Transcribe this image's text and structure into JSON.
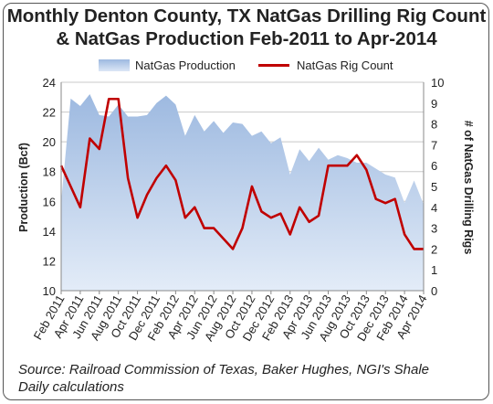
{
  "title_line1": "Monthly Denton County, TX NatGas Drilling Rig Count",
  "title_line2": "& NatGas Production Feb-2011 to Apr-2014",
  "legend": {
    "production": "NatGas Production",
    "rigs": "NatGas Rig Count"
  },
  "source_line1": "Source: Railroad Commission of Texas, Baker Hughes, NGI's Shale",
  "source_line2": "Daily calculations",
  "colors": {
    "production_area_top": "#9db9e0",
    "production_area_bottom": "#e3ecf8",
    "rig_line": "#c00000",
    "grid": "#c8c8c8"
  },
  "chart_data": {
    "type": "area+line",
    "x_tick_labels": [
      "Feb 2011",
      "Apr 2011",
      "Jun 2011",
      "Aug 2011",
      "Oct 2011",
      "Dec 2011",
      "Feb 2012",
      "Apr 2012",
      "Jun 2012",
      "Aug 2012",
      "Oct 2012",
      "Dec 2012",
      "Feb 2013",
      "Apr 2013",
      "Jun 2013",
      "Aug 2013",
      "Oct 2013",
      "Dec 2013",
      "Feb 2014",
      "Apr 2014"
    ],
    "months": [
      "Feb 2011",
      "Mar 2011",
      "Apr 2011",
      "May 2011",
      "Jun 2011",
      "Jul 2011",
      "Aug 2011",
      "Sep 2011",
      "Oct 2011",
      "Nov 2011",
      "Dec 2011",
      "Jan 2012",
      "Feb 2012",
      "Mar 2012",
      "Apr 2012",
      "May 2012",
      "Jun 2012",
      "Jul 2012",
      "Aug 2012",
      "Sep 2012",
      "Oct 2012",
      "Nov 2012",
      "Dec 2012",
      "Jan 2013",
      "Feb 2013",
      "Mar 2013",
      "Apr 2013",
      "May 2013",
      "Jun 2013",
      "Jul 2013",
      "Aug 2013",
      "Sep 2013",
      "Oct 2013",
      "Nov 2013",
      "Dec 2013",
      "Jan 2014",
      "Feb 2014",
      "Mar 2014",
      "Apr 2014"
    ],
    "series": [
      {
        "name": "NatGas Production",
        "axis": "left",
        "values": [
          16.0,
          22.9,
          22.4,
          23.2,
          21.8,
          21.7,
          22.5,
          21.7,
          21.7,
          21.8,
          22.6,
          23.1,
          22.5,
          20.4,
          21.8,
          20.7,
          21.4,
          20.6,
          21.3,
          21.2,
          20.4,
          20.7,
          19.9,
          20.3,
          17.8,
          19.5,
          18.7,
          19.6,
          18.8,
          19.1,
          18.9,
          18.6,
          18.6,
          18.2,
          17.8,
          17.6,
          15.9,
          17.4,
          15.8
        ]
      },
      {
        "name": "NatGas Rig Count",
        "axis": "right",
        "values": [
          6.0,
          5.0,
          4.0,
          7.3,
          6.8,
          9.2,
          9.2,
          5.4,
          3.5,
          4.6,
          5.4,
          6.0,
          5.3,
          3.5,
          4.0,
          3.0,
          3.0,
          2.5,
          2.0,
          3.0,
          5.0,
          3.8,
          3.5,
          3.7,
          2.7,
          4.0,
          3.3,
          3.6,
          6.0,
          6.0,
          6.0,
          6.5,
          5.8,
          4.4,
          4.2,
          4.4,
          2.7,
          2.0,
          2.0
        ]
      }
    ],
    "ylabel_left": "Production (Bcf)",
    "ylabel_right": "# of NatGas Drilling Rigs",
    "ylim_left": [
      10,
      24
    ],
    "ylim_right": [
      0,
      10
    ],
    "yticks_left": [
      "10",
      "12",
      "14",
      "16",
      "18",
      "20",
      "22",
      "24"
    ],
    "yticks_right": [
      "0",
      "1",
      "2",
      "3",
      "4",
      "5",
      "6",
      "7",
      "8",
      "9",
      "10"
    ],
    "grid": "horizontal",
    "legend_position": "top"
  }
}
